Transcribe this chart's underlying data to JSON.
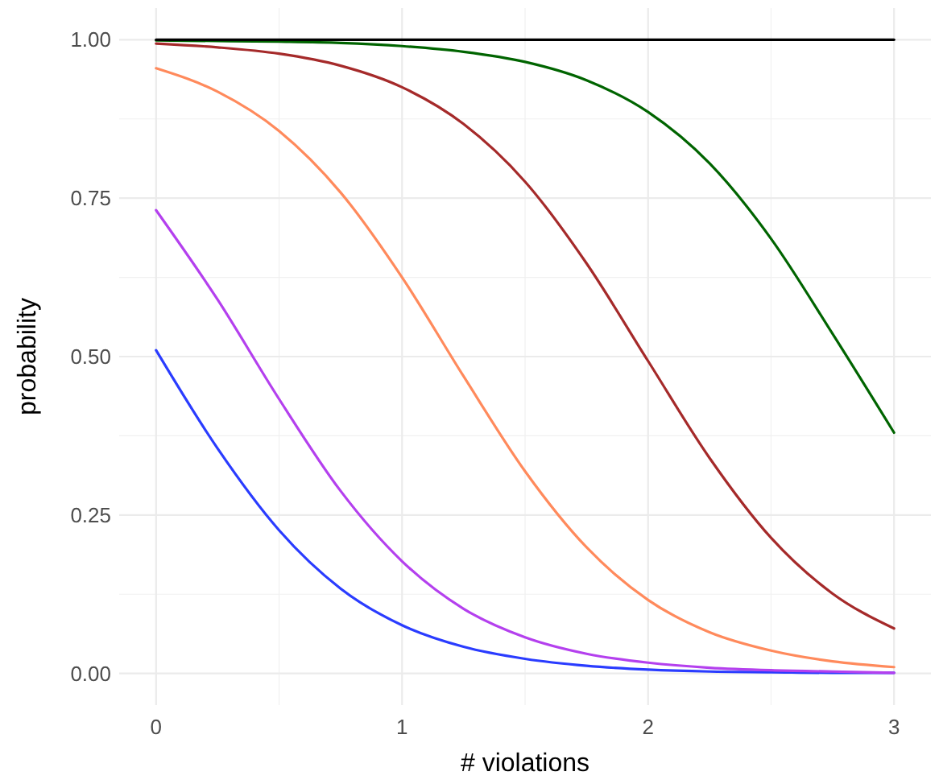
{
  "chart_data": {
    "type": "line",
    "xlabel": "# violations",
    "ylabel": "probability",
    "x": [
      0,
      0.25,
      0.5,
      0.75,
      1,
      1.25,
      1.5,
      1.75,
      2,
      2.25,
      2.5,
      2.75,
      3
    ],
    "series": [
      {
        "color": "#2a3cff",
        "values": [
          0.51,
          0.355,
          0.226,
          0.134,
          0.076,
          0.042,
          0.023,
          0.012,
          0.006,
          0.003,
          0.002,
          0.001,
          0.001
        ]
      },
      {
        "color": "#b440ee",
        "values": [
          0.731,
          0.59,
          0.433,
          0.288,
          0.177,
          0.102,
          0.057,
          0.031,
          0.017,
          0.009,
          0.005,
          0.003,
          0.001
        ]
      },
      {
        "color": "#ff8a5c",
        "values": [
          0.955,
          0.918,
          0.856,
          0.759,
          0.625,
          0.469,
          0.319,
          0.199,
          0.116,
          0.065,
          0.036,
          0.019,
          0.01
        ]
      },
      {
        "color": "#a52a2a",
        "values": [
          0.994,
          0.988,
          0.978,
          0.959,
          0.925,
          0.867,
          0.776,
          0.647,
          0.493,
          0.34,
          0.214,
          0.126,
          0.071
        ]
      },
      {
        "color": "#006400",
        "values": [
          0.999,
          0.998,
          0.997,
          0.995,
          0.99,
          0.981,
          0.965,
          0.936,
          0.886,
          0.805,
          0.686,
          0.536,
          0.38
        ]
      },
      {
        "color": "#000000",
        "values": [
          1,
          1,
          1,
          1,
          1,
          1,
          1,
          1,
          1,
          1,
          1,
          1,
          1
        ]
      }
    ],
    "xlim": [
      -0.15,
      3.15
    ],
    "xticks": [
      0,
      1,
      2,
      3
    ],
    "ylim": [
      -0.05,
      1.05
    ],
    "yticks": [
      {
        "value": 0,
        "label": "0.00"
      },
      {
        "value": 0.25,
        "label": "0.25"
      },
      {
        "value": 0.5,
        "label": "0.50"
      },
      {
        "value": 0.75,
        "label": "0.75"
      },
      {
        "value": 1,
        "label": "1.00"
      }
    ],
    "grid": true,
    "marker": "none",
    "line_style": "solid"
  }
}
